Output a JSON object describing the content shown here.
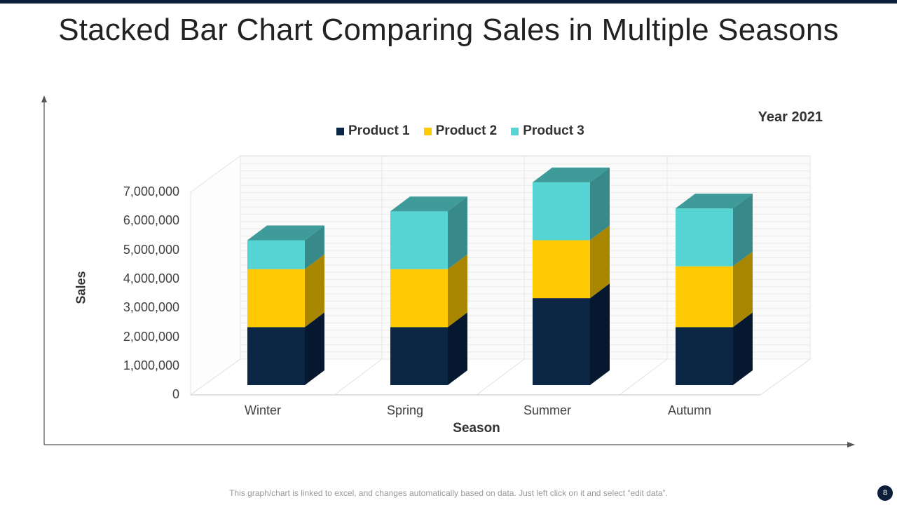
{
  "page": {
    "title": "Stacked Bar Chart Comparing Sales in Multiple Seasons",
    "year_label": "Year 2021",
    "footnote": "This graph/chart is linked to excel, and changes automatically based on data. Just left click on it and select “edit data”.",
    "page_number": "8"
  },
  "colors": {
    "product1": "#0b2545",
    "product2": "#ffc904",
    "product3": "#56d3d3",
    "accent": "#0b1f3a"
  },
  "chart_data": {
    "type": "bar",
    "stacked": true,
    "title": "Year 2021",
    "xlabel": "Season",
    "ylabel": "Sales",
    "categories": [
      "Winter",
      "Spring",
      "Summer",
      "Autumn"
    ],
    "series": [
      {
        "name": "Product 1",
        "values": [
          2000000,
          2000000,
          3000000,
          2000000
        ]
      },
      {
        "name": "Product 2",
        "values": [
          2000000,
          2000000,
          2000000,
          2100000
        ]
      },
      {
        "name": "Product 3",
        "values": [
          1000000,
          2000000,
          2000000,
          2000000
        ]
      }
    ],
    "yticks": [
      "0",
      "1,000,000",
      "2,000,000",
      "3,000,000",
      "4,000,000",
      "5,000,000",
      "6,000,000",
      "7,000,000"
    ],
    "ylim": [
      0,
      7000000
    ],
    "legend_position": "top",
    "grid": true
  }
}
